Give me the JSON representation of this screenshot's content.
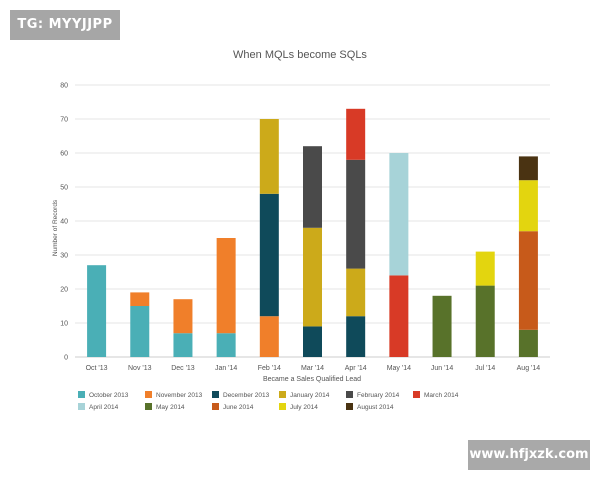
{
  "watermarks": {
    "top_left": "TG: MYYJJPP",
    "bottom_right": "www.hfjxzk.com"
  },
  "chart_data": {
    "type": "bar",
    "stacked": true,
    "title": "When MQLs become SQLs",
    "xlabel": "Became a Sales Qualified Lead",
    "ylabel": "Number of Records",
    "ylim": [
      0,
      80
    ],
    "yticks": [
      0,
      10,
      20,
      30,
      40,
      50,
      60,
      70,
      80
    ],
    "grid": true,
    "legend_position": "bottom-left",
    "categories": [
      "Oct '13",
      "Nov '13",
      "Dec '13",
      "Jan '14",
      "Feb '14",
      "Mar '14",
      "Apr '14",
      "May '14",
      "Jun '14",
      "Jul '14",
      "Aug '14"
    ],
    "series": [
      {
        "name": "October 2013",
        "color": "#4aafb6",
        "values": [
          27,
          15,
          7,
          7,
          0,
          0,
          0,
          0,
          0,
          0,
          0
        ]
      },
      {
        "name": "November 2013",
        "color": "#f07f2a",
        "values": [
          0,
          4,
          10,
          28,
          12,
          0,
          0,
          0,
          0,
          0,
          0
        ]
      },
      {
        "name": "December 2013",
        "color": "#0f4a5a",
        "values": [
          0,
          0,
          0,
          0,
          36,
          9,
          12,
          0,
          0,
          0,
          0
        ]
      },
      {
        "name": "January 2014",
        "color": "#ccaa1a",
        "values": [
          0,
          0,
          0,
          0,
          22,
          29,
          14,
          0,
          0,
          0,
          0
        ]
      },
      {
        "name": "February 2014",
        "color": "#4a4a4a",
        "values": [
          0,
          0,
          0,
          0,
          0,
          24,
          32,
          0,
          0,
          0,
          0
        ]
      },
      {
        "name": "March 2014",
        "color": "#d83a26",
        "values": [
          0,
          0,
          0,
          0,
          0,
          0,
          15,
          24,
          0,
          0,
          0
        ]
      },
      {
        "name": "April 2014",
        "color": "#a7d3d8",
        "values": [
          0,
          0,
          0,
          0,
          0,
          0,
          0,
          36,
          0,
          0,
          0
        ]
      },
      {
        "name": "May 2014",
        "color": "#58722a",
        "values": [
          0,
          0,
          0,
          0,
          0,
          0,
          0,
          0,
          18,
          21,
          8
        ]
      },
      {
        "name": "June 2014",
        "color": "#c75a1a",
        "values": [
          0,
          0,
          0,
          0,
          0,
          0,
          0,
          0,
          0,
          0,
          29
        ]
      },
      {
        "name": "July 2014",
        "color": "#e3d50f",
        "values": [
          0,
          0,
          0,
          0,
          0,
          0,
          0,
          0,
          0,
          10,
          15
        ]
      },
      {
        "name": "August 2014",
        "color": "#4a3312",
        "values": [
          0,
          0,
          0,
          0,
          0,
          0,
          0,
          0,
          0,
          0,
          7
        ]
      }
    ]
  }
}
